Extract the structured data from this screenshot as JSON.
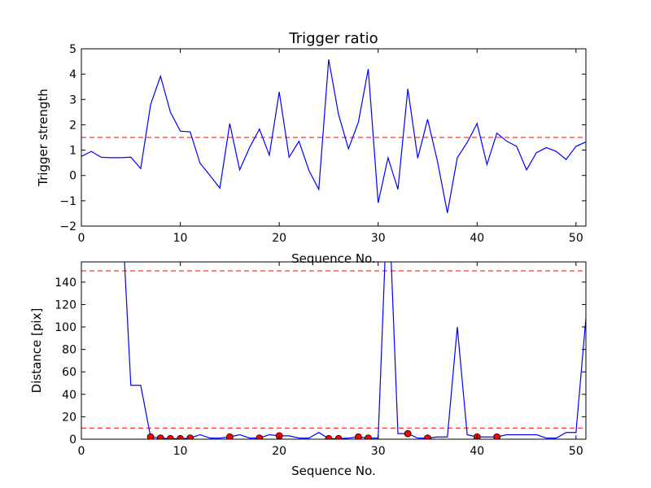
{
  "chart_data": [
    {
      "type": "line",
      "title": "Trigger ratio",
      "xlabel": "Sequence No.",
      "ylabel": "Trigger strength",
      "xlim": [
        0,
        51
      ],
      "ylim": [
        -2,
        5
      ],
      "xticks": [
        0,
        10,
        20,
        30,
        40,
        50
      ],
      "yticks": [
        -2,
        -1,
        0,
        1,
        2,
        3,
        4,
        5
      ],
      "ytick_labels": [
        "−2",
        "−1",
        "0",
        "1",
        "2",
        "3",
        "4",
        "5"
      ],
      "line_color": "#0000ff",
      "threshold": {
        "value": 1.5,
        "color": "#ff0000",
        "style": "dashed"
      },
      "x": [
        0,
        1,
        2,
        3,
        4,
        5,
        6,
        7,
        8,
        9,
        10,
        11,
        12,
        13,
        14,
        15,
        16,
        17,
        18,
        19,
        20,
        21,
        22,
        23,
        24,
        25,
        26,
        27,
        28,
        29,
        30,
        31,
        32,
        33,
        34,
        35,
        36,
        37,
        38,
        39,
        40,
        41,
        42,
        43,
        44,
        45,
        46,
        47,
        48,
        49,
        50,
        51
      ],
      "y": [
        0.75,
        0.95,
        0.72,
        0.7,
        0.7,
        0.72,
        0.27,
        2.8,
        3.92,
        2.5,
        1.75,
        1.72,
        0.48,
        0.0,
        -0.5,
        2.05,
        0.22,
        1.1,
        1.83,
        0.8,
        3.3,
        0.72,
        1.35,
        0.2,
        -0.55,
        4.58,
        2.4,
        1.05,
        2.1,
        4.2,
        -1.08,
        0.7,
        -0.55,
        3.42,
        0.68,
        2.22,
        0.55,
        -1.48,
        0.7,
        1.3,
        2.05,
        0.43,
        1.67,
        1.35,
        1.15,
        0.22,
        0.9,
        1.1,
        0.95,
        0.63,
        1.15,
        1.32
      ]
    },
    {
      "type": "line",
      "title": "",
      "xlabel": "Sequence No.",
      "ylabel": "Distance [pix]",
      "xlim": [
        0,
        51
      ],
      "ylim": [
        0,
        158
      ],
      "xticks": [
        0,
        10,
        20,
        30,
        40,
        50
      ],
      "yticks": [
        0,
        20,
        40,
        60,
        80,
        100,
        120,
        140
      ],
      "line_color": "#0000ff",
      "marker_color": "#ff0000",
      "thresholds": [
        {
          "value": 150,
          "color": "#ff0000",
          "style": "dashed"
        },
        {
          "value": 10,
          "color": "#ff0000",
          "style": "dashed"
        }
      ],
      "x": [
        4,
        5,
        6,
        7,
        8,
        9,
        10,
        11,
        12,
        13,
        14,
        15,
        16,
        17,
        18,
        19,
        20,
        21,
        22,
        23,
        24,
        25,
        26,
        27,
        28,
        29,
        30,
        31,
        32,
        33,
        34,
        35,
        36,
        37,
        38,
        39,
        40,
        41,
        42,
        43,
        44,
        45,
        46,
        47,
        48,
        49,
        50,
        51
      ],
      "y": [
        220,
        48,
        48,
        2,
        1,
        0.5,
        0.5,
        1,
        4,
        1,
        1,
        2,
        4,
        1,
        1,
        4,
        3,
        3,
        1,
        1,
        6,
        0.5,
        0.5,
        1,
        2,
        1,
        1,
        230,
        5,
        5,
        1,
        1,
        2,
        2,
        100,
        4,
        2,
        2,
        2,
        4,
        4,
        4,
        4,
        1,
        1,
        6,
        6,
        108
      ],
      "markers": {
        "x": [
          7,
          8,
          9,
          10,
          11,
          15,
          18,
          20,
          25,
          26,
          28,
          29,
          33,
          35,
          40,
          42
        ],
        "y": [
          2,
          1,
          0.5,
          0.5,
          1,
          2,
          1,
          3,
          0.5,
          0.5,
          2,
          1,
          5,
          1,
          2,
          2
        ]
      }
    }
  ]
}
